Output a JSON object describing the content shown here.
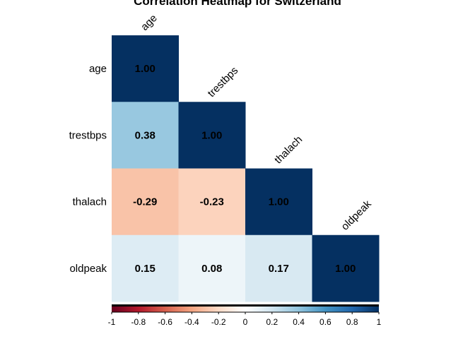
{
  "chart_data": {
    "type": "heatmap",
    "title": "Correlation Heatmap for Switzerland",
    "variables": [
      "age",
      "trestbps",
      "thalach",
      "oldpeak"
    ],
    "layout": "lower-triangle",
    "matrix": [
      [
        1.0,
        null,
        null,
        null
      ],
      [
        0.38,
        1.0,
        null,
        null
      ],
      [
        -0.29,
        -0.23,
        1.0,
        null
      ],
      [
        0.15,
        0.08,
        0.17,
        1.0
      ]
    ],
    "cell_labels": [
      [
        "1.00",
        "",
        "",
        ""
      ],
      [
        "0.38",
        "1.00",
        "",
        ""
      ],
      [
        "-0.29",
        "-0.23",
        "1.00",
        ""
      ],
      [
        "0.15",
        "0.08",
        "0.17",
        "1.00"
      ]
    ],
    "colorbar": {
      "min": -1,
      "max": 1,
      "ticks": [
        "-1",
        "-0.8",
        "-0.6",
        "-0.4",
        "-0.2",
        "0",
        "0.2",
        "0.4",
        "0.6",
        "0.8",
        "1"
      ],
      "placement": "bottom"
    },
    "colors": {
      "negative_extreme": "#67001f",
      "neutral": "#ffffff",
      "positive_extreme": "#053061",
      "palette": [
        "#67001f",
        "#b2182b",
        "#d6604d",
        "#f4a582",
        "#fddbc7",
        "#ffffff",
        "#d1e5f0",
        "#92c5de",
        "#4393c3",
        "#2166ac",
        "#053061"
      ]
    }
  }
}
